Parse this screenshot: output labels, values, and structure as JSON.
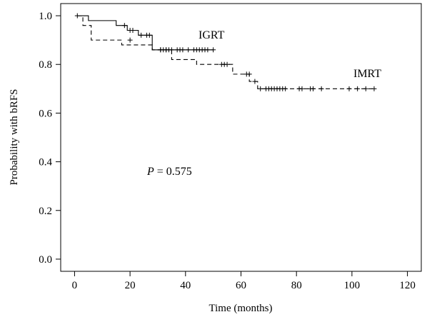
{
  "chart_data": {
    "type": "line",
    "title": "",
    "xlabel": "Time (months)",
    "ylabel": "Probability with bRFS",
    "xlim": [
      -5,
      125
    ],
    "ylim": [
      -0.05,
      1.05
    ],
    "x_ticks": [
      0,
      20,
      40,
      60,
      80,
      100,
      120
    ],
    "y_ticks": [
      0.0,
      0.2,
      0.4,
      0.6,
      0.8,
      1.0
    ],
    "x_tick_labels": [
      "0",
      "20",
      "40",
      "60",
      "80",
      "100",
      "120"
    ],
    "y_tick_labels": [
      "0.0",
      "0.2",
      "0.4",
      "0.6",
      "0.8",
      "1.0"
    ],
    "grid": false,
    "annotation": {
      "prefix": "P",
      "text": " = 0.575"
    },
    "series": [
      {
        "name": "IGRT",
        "line_style": "solid",
        "color": "#000000",
        "steps": [
          [
            1,
            1.0
          ],
          [
            5,
            0.98
          ],
          [
            15,
            0.96
          ],
          [
            19,
            0.94
          ],
          [
            23,
            0.92
          ],
          [
            28,
            0.86
          ],
          [
            30,
            0.86
          ],
          [
            50,
            0.86
          ]
        ],
        "censors": [
          [
            1,
            1.0
          ],
          [
            18,
            0.96
          ],
          [
            20,
            0.94
          ],
          [
            21,
            0.94
          ],
          [
            24,
            0.92
          ],
          [
            26,
            0.92
          ],
          [
            27,
            0.92
          ],
          [
            31,
            0.86
          ],
          [
            33,
            0.86
          ],
          [
            35,
            0.86
          ],
          [
            37,
            0.86
          ],
          [
            38,
            0.86
          ],
          [
            39,
            0.86
          ],
          [
            41,
            0.86
          ],
          [
            43,
            0.86
          ],
          [
            44,
            0.86
          ],
          [
            45,
            0.86
          ],
          [
            46,
            0.86
          ],
          [
            47,
            0.86
          ],
          [
            48,
            0.86
          ],
          [
            50,
            0.86
          ]
        ]
      },
      {
        "name": "IMRT",
        "line_style": "dashed",
        "color": "#000000",
        "steps": [
          [
            1,
            1.0
          ],
          [
            3,
            0.96
          ],
          [
            6,
            0.9
          ],
          [
            17,
            0.88
          ],
          [
            28,
            0.86
          ],
          [
            35,
            0.82
          ],
          [
            44,
            0.8
          ],
          [
            54,
            0.8
          ],
          [
            57,
            0.76
          ],
          [
            63,
            0.73
          ],
          [
            66,
            0.7
          ],
          [
            108,
            0.7
          ]
        ],
        "censors": [
          [
            20,
            0.9
          ],
          [
            31,
            0.86
          ],
          [
            32,
            0.86
          ],
          [
            33,
            0.86
          ],
          [
            34,
            0.86
          ],
          [
            53,
            0.8
          ],
          [
            54,
            0.8
          ],
          [
            55,
            0.8
          ],
          [
            62,
            0.76
          ],
          [
            63,
            0.76
          ],
          [
            65,
            0.73
          ],
          [
            67,
            0.7
          ],
          [
            69,
            0.7
          ],
          [
            70,
            0.7
          ],
          [
            71,
            0.7
          ],
          [
            72,
            0.7
          ],
          [
            73,
            0.7
          ],
          [
            74,
            0.7
          ],
          [
            75,
            0.7
          ],
          [
            76,
            0.7
          ],
          [
            81,
            0.7
          ],
          [
            82,
            0.7
          ],
          [
            85,
            0.7
          ],
          [
            86,
            0.7
          ],
          [
            89,
            0.7
          ],
          [
            99,
            0.7
          ],
          [
            102,
            0.7
          ],
          [
            105,
            0.7
          ],
          [
            108,
            0.7
          ]
        ]
      }
    ]
  }
}
